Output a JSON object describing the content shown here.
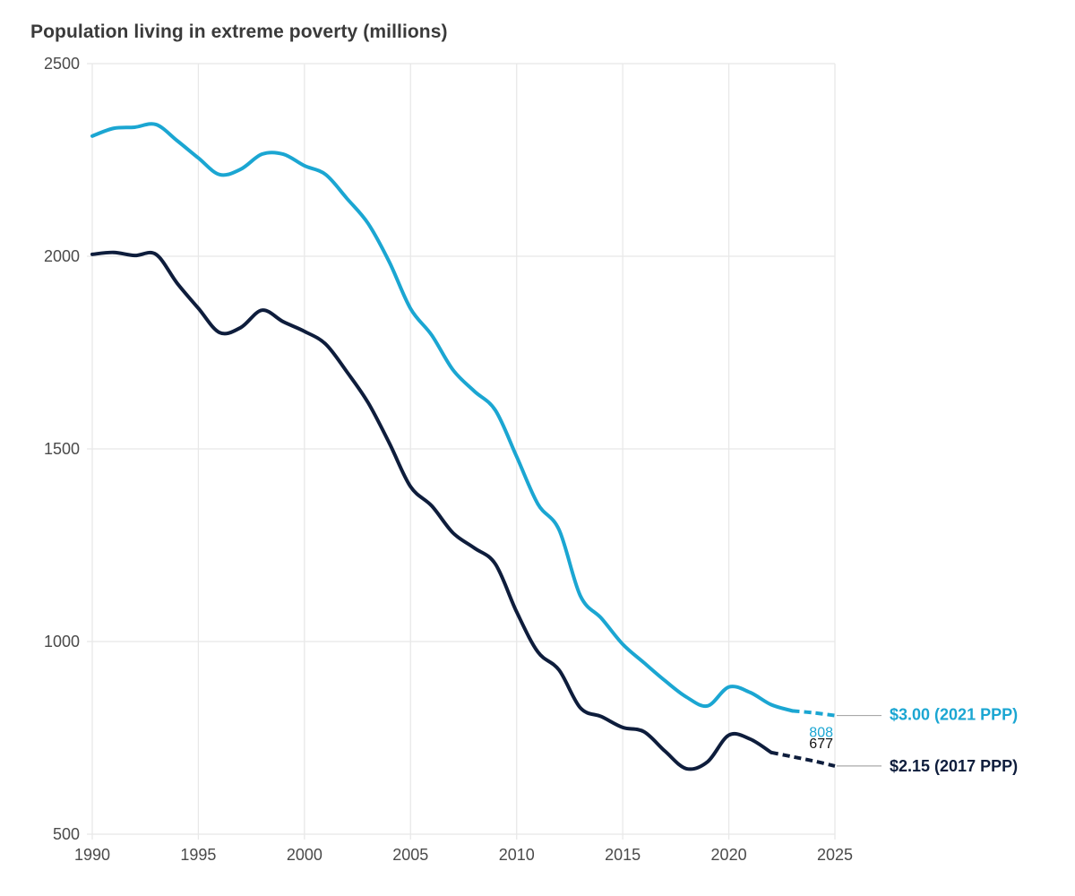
{
  "chart_data": {
    "type": "line",
    "title": "Population living in extreme poverty (millions)",
    "xlabel": "",
    "ylabel": "",
    "xlim": [
      1990,
      2025
    ],
    "ylim": [
      500,
      2500
    ],
    "grid": true,
    "x_ticks": [
      1990,
      1995,
      2000,
      2005,
      2010,
      2015,
      2020,
      2025
    ],
    "y_ticks": [
      500,
      1000,
      1500,
      2000,
      2500
    ],
    "legend": "right-end labels",
    "series": [
      {
        "name": "$3.00 (2021 PPP)",
        "color": "#1ba6d2",
        "x": [
          1990,
          1991,
          1992,
          1993,
          1994,
          1995,
          1996,
          1997,
          1998,
          1999,
          2000,
          2001,
          2002,
          2003,
          2004,
          2005,
          2006,
          2007,
          2008,
          2009,
          2010,
          2011,
          2012,
          2013,
          2014,
          2015,
          2016,
          2017,
          2018,
          2019,
          2020,
          2021,
          2022,
          2023
        ],
        "values": [
          2312,
          2332,
          2335,
          2342,
          2300,
          2255,
          2212,
          2226,
          2265,
          2265,
          2235,
          2212,
          2150,
          2085,
          1985,
          1864,
          1795,
          1705,
          1650,
          1600,
          1480,
          1357,
          1290,
          1119,
          1060,
          993,
          945,
          898,
          856,
          833,
          882,
          868,
          836,
          820
        ],
        "projection": {
          "x": [
            2023,
            2024,
            2025
          ],
          "values": [
            820,
            815,
            808
          ]
        },
        "end_value_label": "808"
      },
      {
        "name": "$2.15 (2017 PPP)",
        "color": "#0e1d3c",
        "x": [
          1990,
          1991,
          1992,
          1993,
          1994,
          1995,
          1996,
          1997,
          1998,
          1999,
          2000,
          2001,
          2002,
          2003,
          2004,
          2005,
          2006,
          2007,
          2008,
          2009,
          2010,
          2011,
          2012,
          2013,
          2014,
          2015,
          2016,
          2017,
          2018,
          2019,
          2020,
          2021,
          2022
        ],
        "values": [
          2005,
          2010,
          2002,
          2005,
          1930,
          1865,
          1802,
          1815,
          1860,
          1830,
          1805,
          1772,
          1700,
          1620,
          1515,
          1402,
          1352,
          1282,
          1243,
          1201,
          1077,
          973,
          926,
          828,
          805,
          777,
          766,
          715,
          670,
          688,
          757,
          747,
          712
        ],
        "projection": {
          "x": [
            2022,
            2023,
            2024,
            2025
          ],
          "values": [
            712,
            701,
            690,
            677
          ]
        },
        "end_value_label": "677"
      }
    ]
  }
}
